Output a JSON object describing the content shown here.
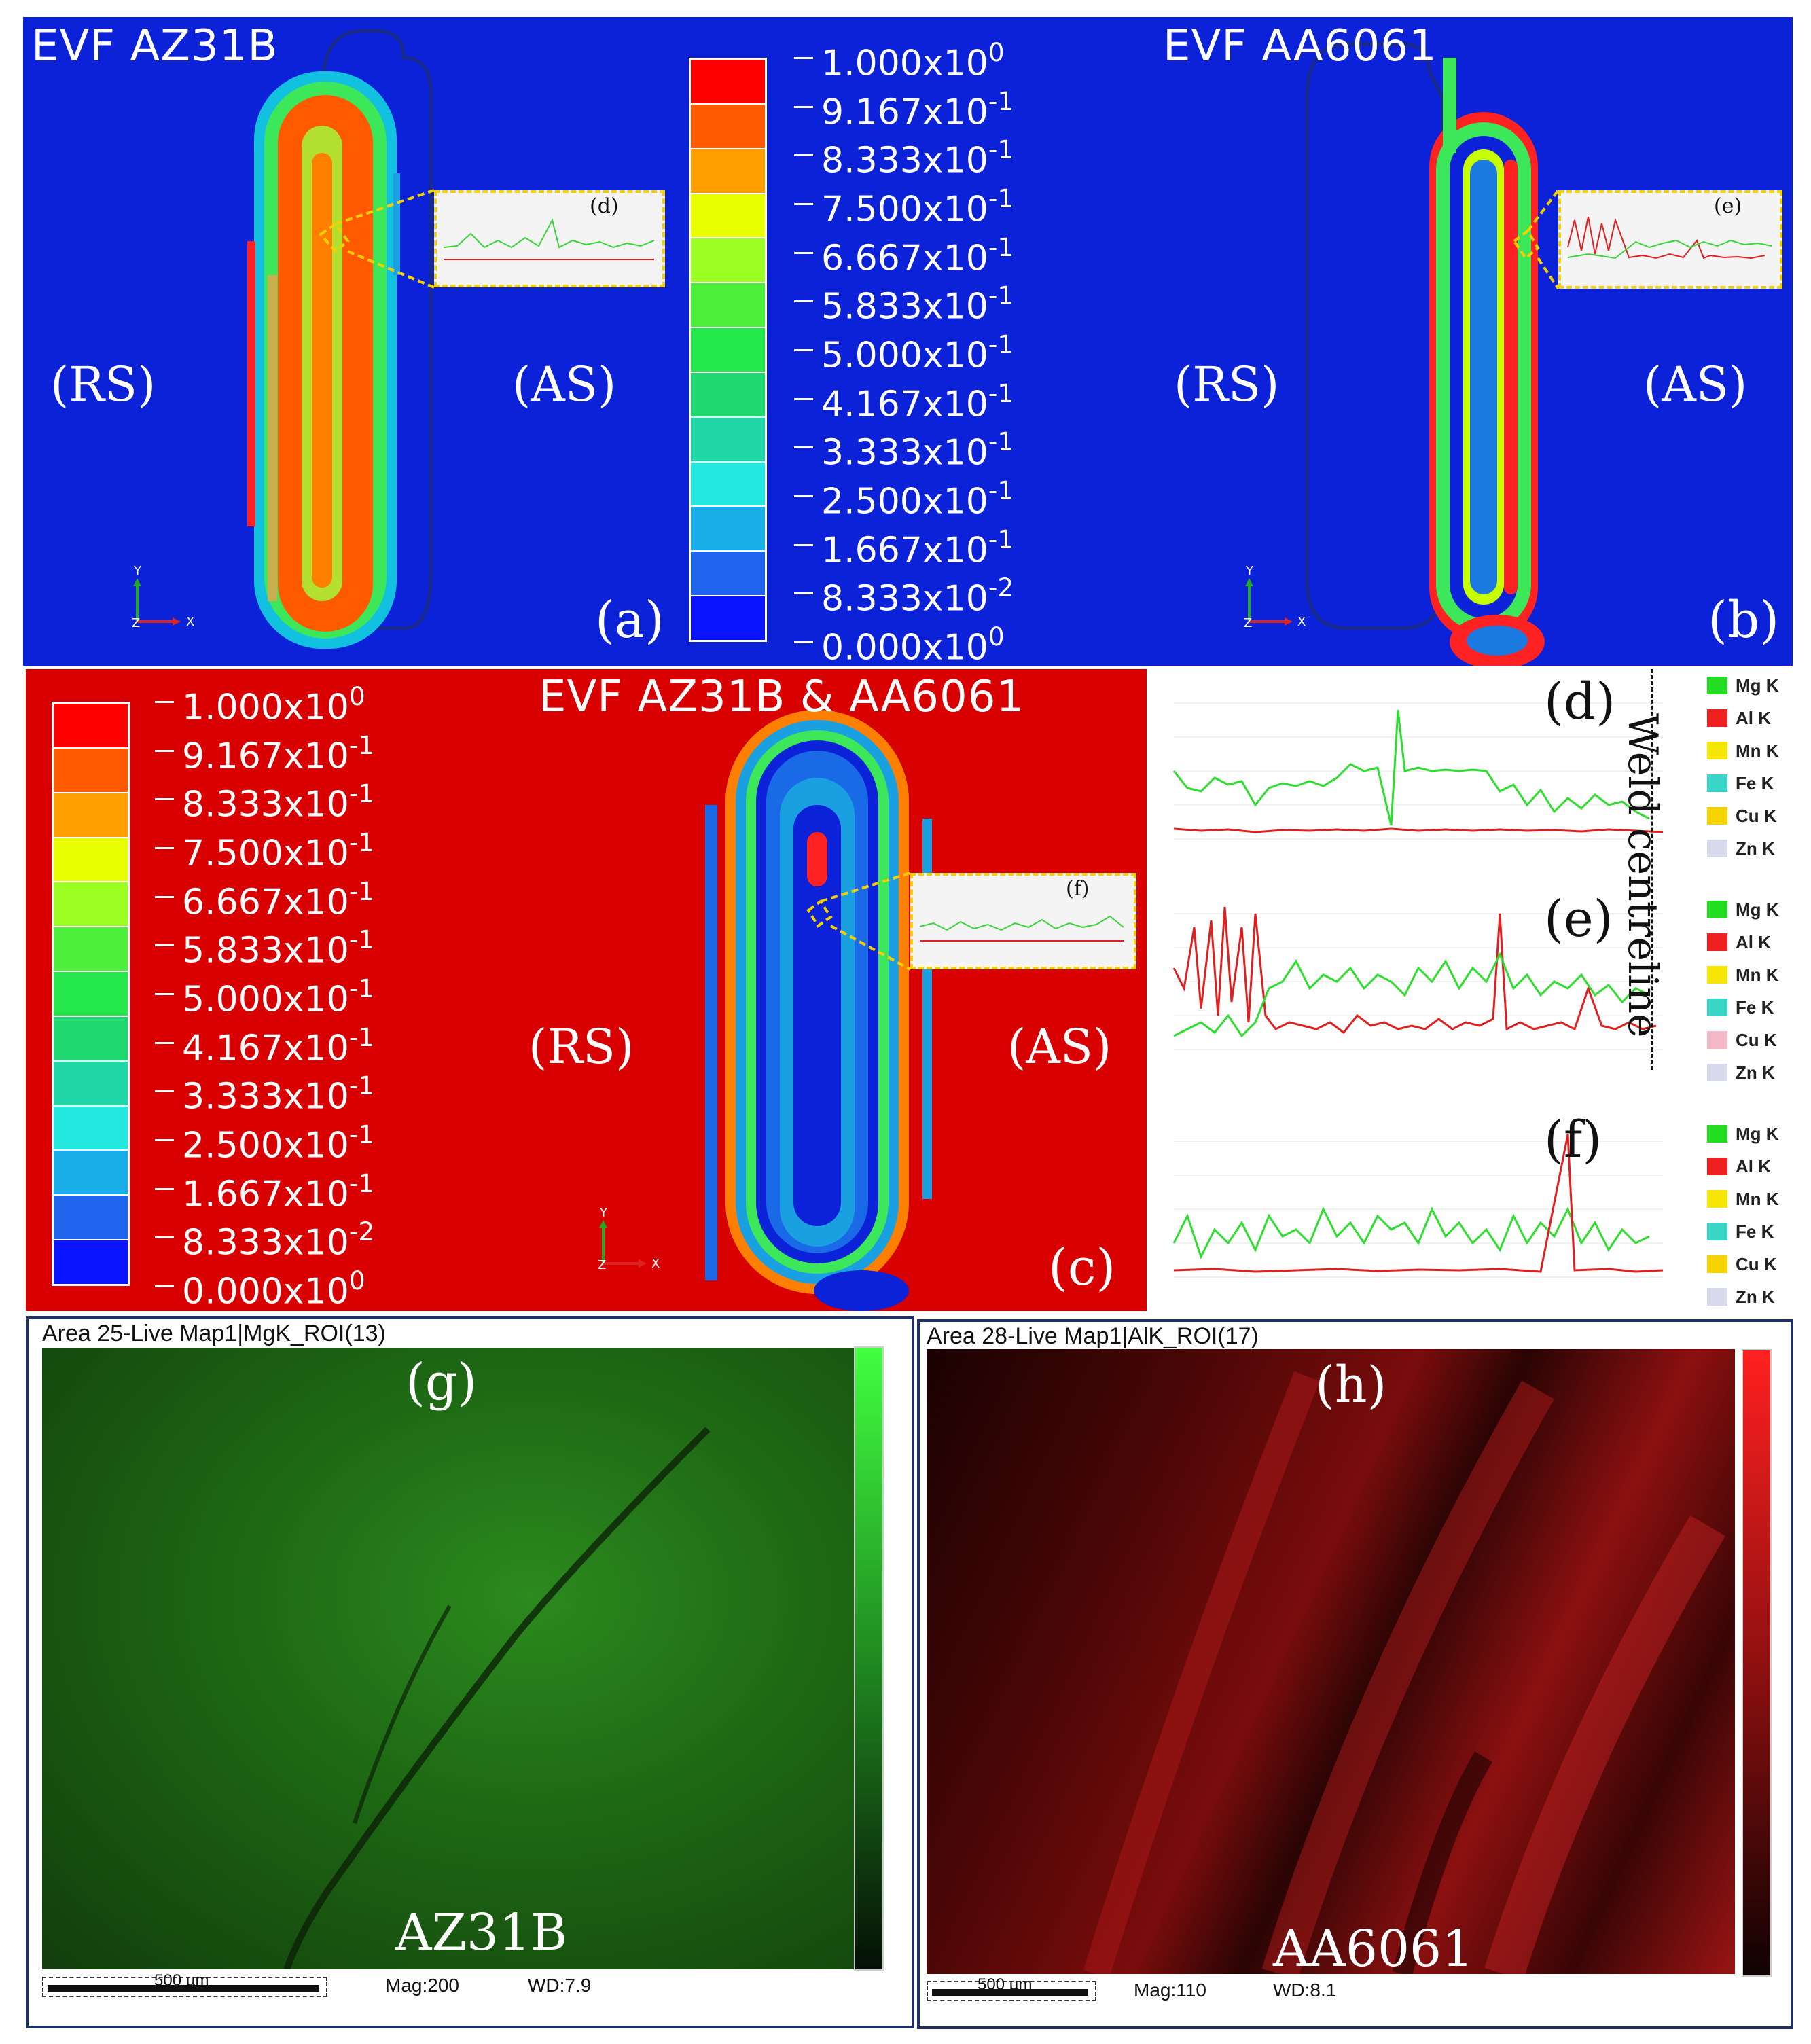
{
  "colorbar_labels": [
    {
      "m": "1.000",
      "e": "0"
    },
    {
      "m": "9.167",
      "e": "-1"
    },
    {
      "m": "8.333",
      "e": "-1"
    },
    {
      "m": "7.500",
      "e": "-1"
    },
    {
      "m": "6.667",
      "e": "-1"
    },
    {
      "m": "5.833",
      "e": "-1"
    },
    {
      "m": "5.000",
      "e": "-1"
    },
    {
      "m": "4.167",
      "e": "-1"
    },
    {
      "m": "3.333",
      "e": "-1"
    },
    {
      "m": "2.500",
      "e": "-1"
    },
    {
      "m": "1.667",
      "e": "-1"
    },
    {
      "m": "8.333",
      "e": "-2"
    },
    {
      "m": "0.000",
      "e": "0"
    }
  ],
  "colorbar_colors": [
    "#ff0000",
    "#ff5a00",
    "#ffa000",
    "#e8ff00",
    "#9cff24",
    "#4cf03a",
    "#24e84a",
    "#20d870",
    "#1fd7a6",
    "#22e8e0",
    "#1aaee8",
    "#1e64ec",
    "#0a14ff"
  ],
  "panel_a": {
    "title": "EVF AZ31B",
    "rs": "(RS)",
    "as": "(AS)",
    "label": "(a)",
    "inset_label": "(d)"
  },
  "panel_b": {
    "title": "EVF AA6061",
    "rs": "(RS)",
    "as": "(AS)",
    "label": "(b)",
    "inset_label": "(e)"
  },
  "panel_c": {
    "title": "EVF AZ31B & AA6061",
    "rs": "(RS)",
    "as": "(AS)",
    "label": "(c)",
    "inset_label": "(f)"
  },
  "axis_y": "Y",
  "axis_z": "Z",
  "axis_x": "X",
  "edx_legend": [
    {
      "name": "Mg K",
      "color": "#22dd22"
    },
    {
      "name": "Al K",
      "color": "#ee2020"
    },
    {
      "name": "Mn K",
      "color": "#f5e600"
    },
    {
      "name": "Fe K",
      "color": "#39d6c8"
    },
    {
      "name": "Cu K",
      "color": "#f5d400"
    },
    {
      "name": "Zn K",
      "color": "#d9d9ee"
    }
  ],
  "edx_legend_e": [
    {
      "name": "Mg K",
      "color": "#22dd22"
    },
    {
      "name": "Al K",
      "color": "#ee2020"
    },
    {
      "name": "Mn K",
      "color": "#f5e600"
    },
    {
      "name": "Fe K",
      "color": "#39d6c8"
    },
    {
      "name": "Cu K",
      "color": "#f4b8c8"
    },
    {
      "name": "Zn K",
      "color": "#d9d9ee"
    }
  ],
  "chart_labels": {
    "d": "(d)",
    "e": "(e)",
    "f": "(f)"
  },
  "weld_centreline": "Weld centreline",
  "map_g": {
    "title": "Area 25-Live Map1|MgK_ROI(13)",
    "label": "(g)",
    "material": "AZ31B",
    "scale": "500 µm",
    "mag": "Mag:200",
    "wd": "WD:7.9"
  },
  "map_h": {
    "title": "Area 28-Live Map1|AlK_ROI(17)",
    "label": "(h)",
    "material": "AA6061",
    "scale": "500 µm",
    "mag": "Mag:110",
    "wd": "WD:8.1"
  }
}
